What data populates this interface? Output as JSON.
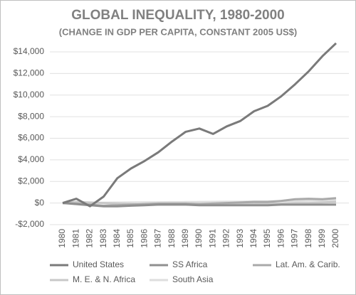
{
  "chart_data": {
    "type": "line",
    "title": "GLOBAL INEQUALITY, 1980-2000",
    "subtitle": "(CHANGE IN GDP PER CAPITA, CONSTANT 2005 US$)",
    "categories": [
      "1980",
      "1981",
      "1982",
      "1983",
      "1984",
      "1985",
      "1986",
      "1987",
      "1988",
      "1989",
      "1990",
      "1991",
      "1992",
      "1993",
      "1994",
      "1995",
      "1996",
      "1997",
      "1998",
      "1999",
      "2000"
    ],
    "series": [
      {
        "name": "United States",
        "color": "#7a7a7a",
        "values": [
          0,
          400,
          -300,
          600,
          2300,
          3200,
          3900,
          4700,
          5700,
          6600,
          6900,
          6400,
          7100,
          7600,
          8500,
          9000,
          9900,
          11000,
          12200,
          13600,
          14800
        ]
      },
      {
        "name": "SS Africa",
        "color": "#8f8f8f",
        "values": [
          0,
          -100,
          -200,
          -300,
          -300,
          -250,
          -200,
          -150,
          -150,
          -150,
          -200,
          -200,
          -200,
          -200,
          -200,
          -200,
          -150,
          -150,
          -150,
          -150,
          -150
        ]
      },
      {
        "name": "Lat. Am. & Carib.",
        "color": "#a9a9a9",
        "values": [
          0,
          -50,
          -150,
          -250,
          -200,
          -150,
          -100,
          -50,
          -50,
          -50,
          -100,
          -50,
          0,
          50,
          100,
          100,
          200,
          350,
          400,
          350,
          450
        ]
      },
      {
        "name": "M. E. & N. Africa",
        "color": "#c8c8c8",
        "values": [
          0,
          100,
          50,
          0,
          -50,
          -100,
          -150,
          -150,
          -150,
          -150,
          -100,
          -100,
          -100,
          -100,
          -100,
          -50,
          -50,
          0,
          0,
          50,
          100
        ]
      },
      {
        "name": "South Asia",
        "color": "#dedede",
        "values": [
          0,
          10,
          20,
          30,
          40,
          50,
          60,
          70,
          80,
          90,
          100,
          110,
          120,
          130,
          150,
          160,
          180,
          200,
          220,
          240,
          260
        ]
      }
    ],
    "ylim": [
      -2000,
      14000
    ],
    "yticks": [
      {
        "value": -2000,
        "label": "-$2,000"
      },
      {
        "value": 0,
        "label": "$0"
      },
      {
        "value": 2000,
        "label": "$2,000"
      },
      {
        "value": 4000,
        "label": "$4,000"
      },
      {
        "value": 6000,
        "label": "$6,000"
      },
      {
        "value": 8000,
        "label": "$8,000"
      },
      {
        "value": 10000,
        "label": "$10,000"
      },
      {
        "value": 12000,
        "label": "$12,000"
      },
      {
        "value": 14000,
        "label": "$14,000"
      }
    ],
    "grid": true,
    "legend": "bottom"
  }
}
